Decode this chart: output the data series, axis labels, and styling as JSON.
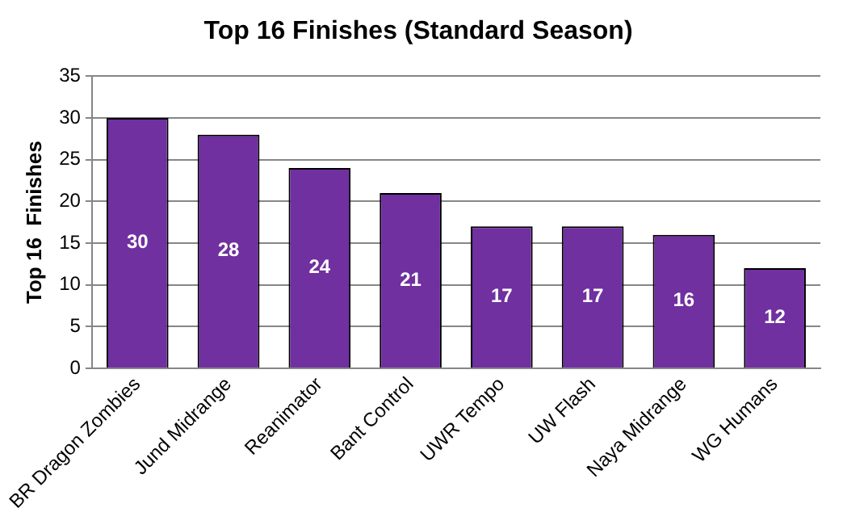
{
  "chart_data": {
    "type": "bar",
    "title": "Top 16 Finishes (Standard Season)",
    "ylabel": "Top 16  Finishes",
    "categories": [
      "BR Dragon Zombies",
      "Jund Midrange",
      "Reanimator",
      "Bant Control",
      "UWR Tempo",
      "UW Flash",
      "Naya Midrange",
      "WG Humans"
    ],
    "values": [
      30,
      28,
      24,
      21,
      17,
      17,
      16,
      12
    ],
    "color": "#7030a0",
    "ylim": [
      0,
      35
    ],
    "yticks": [
      0,
      5,
      10,
      15,
      20,
      25,
      30,
      35
    ],
    "grid": "y",
    "data_labels": true,
    "legend": false
  }
}
